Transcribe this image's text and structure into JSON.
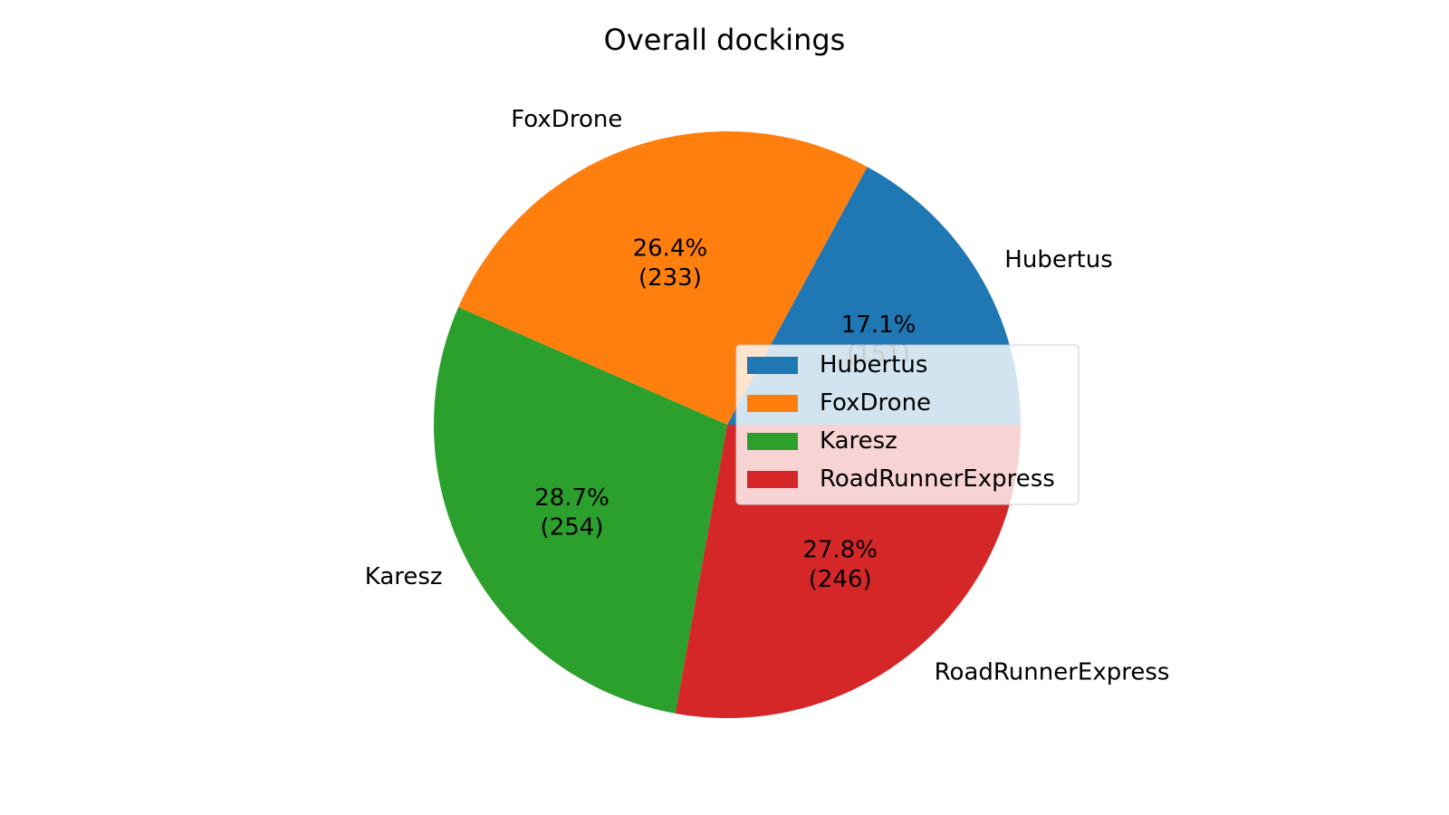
{
  "chart_data": {
    "type": "pie",
    "title": "Overall dockings",
    "categories": [
      "Hubertus",
      "FoxDrone",
      "Karesz",
      "RoadRunnerExpress"
    ],
    "values": [
      151,
      233,
      254,
      246
    ],
    "percent_labels": [
      "17.1%",
      "26.4%",
      "28.7%",
      "27.8%"
    ],
    "count_labels": [
      "(151)",
      "(233)",
      "(254)",
      "(246)"
    ],
    "colors": [
      "#1f77b4",
      "#ff7f0e",
      "#2ca02c",
      "#d62728"
    ],
    "start_angle_deg": 0,
    "direction": "counterclockwise",
    "legend": {
      "entries": [
        "Hubertus",
        "FoxDrone",
        "Karesz",
        "RoadRunnerExpress"
      ],
      "placement": "center-right"
    }
  }
}
